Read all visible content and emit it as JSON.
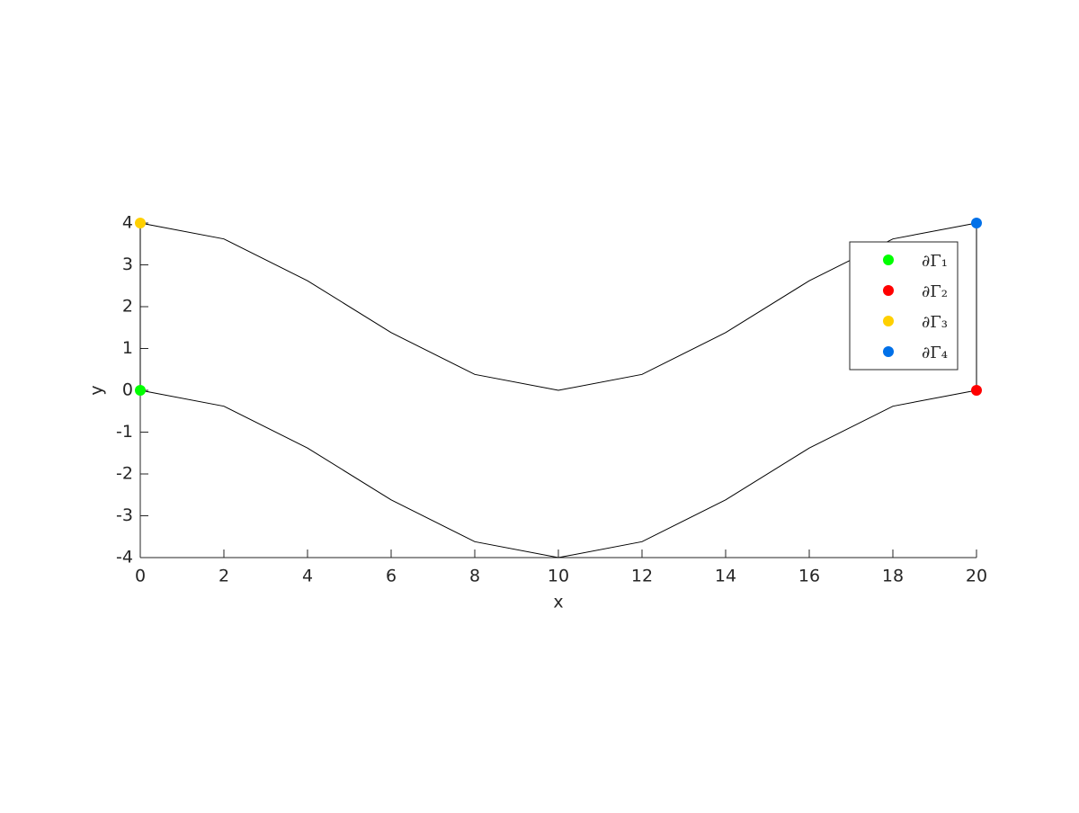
{
  "chart_data": {
    "type": "line",
    "xlabel": "x",
    "ylabel": "y",
    "x": [
      0,
      2,
      4,
      6,
      8,
      10,
      12,
      14,
      16,
      18,
      20
    ],
    "series": [
      {
        "color": "#000000",
        "values": [
          0,
          -0.38,
          -1.38,
          -2.62,
          -3.62,
          -4,
          -3.62,
          -2.62,
          -1.38,
          -0.38,
          0
        ]
      },
      {
        "color": "#000000",
        "values": [
          4,
          3.62,
          2.62,
          1.38,
          0.38,
          0,
          0.38,
          1.38,
          2.62,
          3.62,
          4
        ]
      }
    ],
    "edges": [
      {
        "color": "#000000",
        "x": [
          0,
          0
        ],
        "y": [
          0,
          4
        ]
      },
      {
        "color": "#000000",
        "x": [
          20,
          20
        ],
        "y": [
          0,
          4
        ]
      }
    ],
    "points": [
      {
        "name": "∂Γ₁",
        "color": "#00ff00",
        "x": 0,
        "y": 0
      },
      {
        "name": "∂Γ₂",
        "color": "#ff0000",
        "x": 20,
        "y": 0
      },
      {
        "name": "∂Γ₃",
        "color": "#ffd000",
        "x": 0,
        "y": 4
      },
      {
        "name": "∂Γ₄",
        "color": "#0070e8",
        "x": 20,
        "y": 4
      }
    ],
    "xlim": [
      0,
      20
    ],
    "ylim": [
      -4,
      4
    ],
    "xticks": [
      0,
      2,
      4,
      6,
      8,
      10,
      12,
      14,
      16,
      18,
      20
    ],
    "yticks": [
      -4,
      -3,
      -2,
      -1,
      0,
      1,
      2,
      3,
      4
    ],
    "grid": false,
    "legend": "northeast"
  }
}
